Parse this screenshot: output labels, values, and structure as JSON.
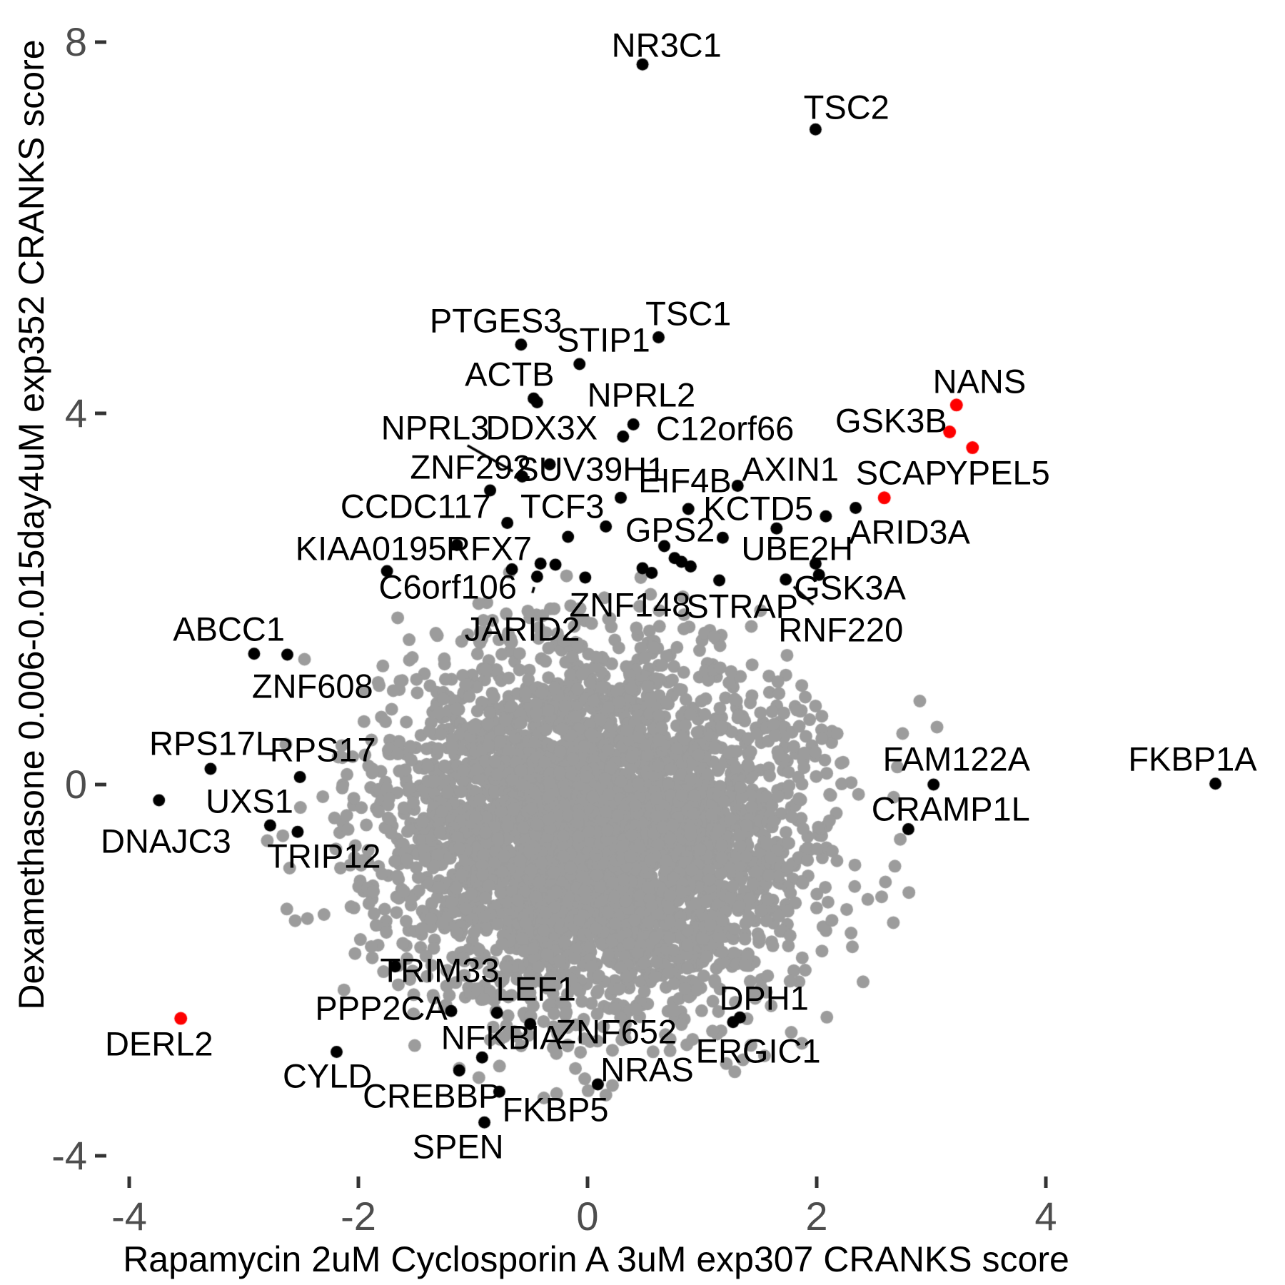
{
  "chart_data": {
    "type": "scatter",
    "title": "",
    "xlabel": "Rapamycin 2uM Cyclosporin A 3uM exp307 CRANKS score",
    "ylabel": "Dexamethasone 0.006-0.015day4uM exp352 CRANKS score",
    "xlim": [
      -4.3,
      5.9
    ],
    "ylim": [
      -4.4,
      8.3
    ],
    "x_ticks": [
      -4,
      -2,
      0,
      2,
      4
    ],
    "y_ticks": [
      8,
      4,
      0,
      -4
    ],
    "grid": false,
    "legend": "none",
    "colors": {
      "labeled_point": "#000000",
      "highlight_point": "#fe0000",
      "cloud_point": "#9c9c9c",
      "tick_label": "#4d4d4d",
      "axis_title": "#000000",
      "gene_label": "#000000"
    },
    "labeled_points": [
      {
        "g": "NR3C1",
        "x": 0.48,
        "y": 7.76,
        "lx": 0.69,
        "ly": 7.97,
        "c": "k"
      },
      {
        "g": "TSC2",
        "x": 1.99,
        "y": 7.06,
        "lx": 2.26,
        "ly": 7.3,
        "c": "k"
      },
      {
        "g": "TSC1",
        "x": 0.62,
        "y": 4.82,
        "lx": 0.88,
        "ly": 5.08,
        "c": "k"
      },
      {
        "g": "PTGES3",
        "x": -0.58,
        "y": 4.74,
        "lx": -0.8,
        "ly": 5.0,
        "c": "k"
      },
      {
        "g": "STIP1",
        "x": -0.07,
        "y": 4.53,
        "lx": 0.14,
        "ly": 4.79,
        "c": "k"
      },
      {
        "g": "ACTB",
        "x": -0.47,
        "y": 4.16,
        "lx": -0.68,
        "ly": 4.42,
        "c": "k"
      },
      {
        "g": "DDX3X",
        "x": -0.44,
        "y": 4.12,
        "lx": -0.4,
        "ly": 3.85,
        "c": "k"
      },
      {
        "g": "NPRL2",
        "x": 0.4,
        "y": 3.88,
        "lx": 0.47,
        "ly": 4.2,
        "c": "k"
      },
      {
        "g": "C12orf66",
        "x": 0.31,
        "y": 3.75,
        "lx": 1.2,
        "ly": 3.84,
        "c": "k"
      },
      {
        "g": "NPRL3",
        "x": -0.57,
        "y": 3.32,
        "lx": -1.33,
        "ly": 3.85,
        "c": "k",
        "seg": true
      },
      {
        "g": "ZNF292",
        "x": -0.85,
        "y": 3.17,
        "lx": -1.02,
        "ly": 3.42,
        "c": "k"
      },
      {
        "g": "SUV39H1",
        "x": -0.33,
        "y": 3.45,
        "lx": 0.03,
        "ly": 3.4,
        "c": "k"
      },
      {
        "g": "EIF4B",
        "x": 1.31,
        "y": 3.22,
        "lx": 0.85,
        "ly": 3.28,
        "c": "k"
      },
      {
        "g": "AXIN1",
        "x": 2.08,
        "y": 2.89,
        "lx": 1.77,
        "ly": 3.4,
        "c": "k"
      },
      {
        "g": "SCAP",
        "x": 2.59,
        "y": 3.09,
        "lx": 2.74,
        "ly": 3.36,
        "c": "r"
      },
      {
        "g": "NANS",
        "x": 3.22,
        "y": 4.09,
        "lx": 3.42,
        "ly": 4.35,
        "c": "r"
      },
      {
        "g": "GSK3B",
        "x": 3.16,
        "y": 3.8,
        "lx": 2.65,
        "ly": 3.92,
        "c": "r"
      },
      {
        "g": "YPEL5",
        "x": 3.36,
        "y": 3.63,
        "lx": 3.58,
        "ly": 3.36,
        "c": "r"
      },
      {
        "g": "CCDC117",
        "x": -0.7,
        "y": 2.82,
        "lx": -1.5,
        "ly": 3.0,
        "c": "k"
      },
      {
        "g": "TCF3",
        "x": -0.17,
        "y": 2.67,
        "lx": -0.22,
        "ly": 3.0,
        "c": "k"
      },
      {
        "g": "KCTD5",
        "x": 1.65,
        "y": 2.76,
        "lx": 1.49,
        "ly": 2.98,
        "c": "k"
      },
      {
        "g": "GPS2",
        "x": 0.88,
        "y": 2.97,
        "lx": 0.72,
        "ly": 2.75,
        "c": "k"
      },
      {
        "g": "UBE2H",
        "x": 1.99,
        "y": 2.38,
        "lx": 1.83,
        "ly": 2.55,
        "c": "k"
      },
      {
        "g": "ARID3A",
        "x": 2.34,
        "y": 2.98,
        "lx": 2.81,
        "ly": 2.72,
        "c": "k"
      },
      {
        "g": "GSK3A",
        "x": 2.02,
        "y": 2.26,
        "lx": 2.29,
        "ly": 2.12,
        "c": "k"
      },
      {
        "g": "RNF220",
        "x": 1.73,
        "y": 2.21,
        "lx": 2.21,
        "ly": 1.67,
        "c": "k",
        "seg": true
      },
      {
        "g": "KIAA0195",
        "x": -1.75,
        "y": 2.3,
        "lx": -1.89,
        "ly": 2.55,
        "c": "k"
      },
      {
        "g": "RFX7",
        "x": -1.14,
        "y": 2.58,
        "lx": -0.86,
        "ly": 2.55,
        "c": "k"
      },
      {
        "g": "C6orf106",
        "x": -0.66,
        "y": 2.32,
        "lx": -1.22,
        "ly": 2.13,
        "c": "k"
      },
      {
        "g": "JARID2",
        "x": -0.44,
        "y": 2.24,
        "lx": -0.57,
        "ly": 1.68,
        "c": "k",
        "seg": true
      },
      {
        "g": "ZNF148",
        "x": 0.56,
        "y": 2.28,
        "lx": 0.37,
        "ly": 1.94,
        "c": "k"
      },
      {
        "g": "STRAP",
        "x": 1.15,
        "y": 2.2,
        "lx": 1.35,
        "ly": 1.92,
        "c": "k"
      },
      {
        "g": "ABCC1",
        "x": -2.91,
        "y": 1.41,
        "lx": -3.13,
        "ly": 1.68,
        "c": "k"
      },
      {
        "g": "ZNF608",
        "x": -2.62,
        "y": 1.4,
        "lx": -2.4,
        "ly": 1.06,
        "c": "k"
      },
      {
        "g": "RPS17L",
        "x": -3.29,
        "y": 0.17,
        "lx": -3.28,
        "ly": 0.45,
        "c": "k"
      },
      {
        "g": "RPS17",
        "x": -2.51,
        "y": 0.08,
        "lx": -2.31,
        "ly": 0.38,
        "c": "k"
      },
      {
        "g": "UXS1",
        "x": -2.77,
        "y": -0.44,
        "lx": -2.95,
        "ly": -0.18,
        "c": "k"
      },
      {
        "g": "DNAJC3",
        "x": -3.74,
        "y": -0.17,
        "lx": -3.68,
        "ly": -0.61,
        "c": "k"
      },
      {
        "g": "TRIP12",
        "x": -2.53,
        "y": -0.51,
        "lx": -2.3,
        "ly": -0.77,
        "c": "k"
      },
      {
        "g": "FAM122A",
        "x": 3.02,
        "y": 0.0,
        "lx": 3.22,
        "ly": 0.28,
        "c": "k"
      },
      {
        "g": "CRAMP1L",
        "x": 2.8,
        "y": -0.48,
        "lx": 3.17,
        "ly": -0.26,
        "c": "k"
      },
      {
        "g": "FKBP1A",
        "x": 5.48,
        "y": 0.01,
        "lx": 5.28,
        "ly": 0.28,
        "c": "k"
      },
      {
        "g": "TRIM33",
        "x": -1.68,
        "y": -1.96,
        "lx": -1.29,
        "ly": -2.0,
        "c": "k"
      },
      {
        "g": "PPP2CA",
        "x": -1.19,
        "y": -2.44,
        "lx": -1.8,
        "ly": -2.41,
        "c": "k"
      },
      {
        "g": "LEF1",
        "x": -0.79,
        "y": -2.46,
        "lx": -0.45,
        "ly": -2.2,
        "c": "k"
      },
      {
        "g": "ZNF652",
        "x": -0.5,
        "y": -2.58,
        "lx": 0.25,
        "ly": -2.66,
        "c": "k"
      },
      {
        "g": "NFKBIA",
        "x": -0.92,
        "y": -2.94,
        "lx": -0.75,
        "ly": -2.72,
        "c": "k"
      },
      {
        "g": "CREBBP",
        "x": -1.12,
        "y": -3.08,
        "lx": -1.36,
        "ly": -3.35,
        "c": "k"
      },
      {
        "g": "FKBP5",
        "x": -0.77,
        "y": -3.31,
        "lx": -0.28,
        "ly": -3.5,
        "c": "k"
      },
      {
        "g": "NRAS",
        "x": 0.09,
        "y": -3.23,
        "lx": 0.52,
        "ly": -3.07,
        "c": "k"
      },
      {
        "g": "SPEN",
        "x": -0.9,
        "y": -3.64,
        "lx": -1.13,
        "ly": -3.9,
        "c": "k"
      },
      {
        "g": "CYLD",
        "x": -2.19,
        "y": -2.88,
        "lx": -2.27,
        "ly": -3.14,
        "c": "k"
      },
      {
        "g": "DPH1",
        "x": 1.33,
        "y": -2.51,
        "lx": 1.54,
        "ly": -2.3,
        "c": "k"
      },
      {
        "g": "ERGIC1",
        "x": 1.27,
        "y": -2.56,
        "lx": 1.49,
        "ly": -2.87,
        "c": "k"
      },
      {
        "g": "DERL2",
        "x": -3.55,
        "y": -2.52,
        "lx": -3.74,
        "ly": -2.79,
        "c": "r"
      }
    ],
    "extra_black_points": [
      [
        0.67,
        2.57
      ],
      [
        0.76,
        2.44
      ],
      [
        0.82,
        2.4
      ],
      [
        0.9,
        2.35
      ],
      [
        1.18,
        2.66
      ],
      [
        0.48,
        2.33
      ],
      [
        -0.02,
        2.23
      ],
      [
        -0.41,
        2.38
      ],
      [
        -0.28,
        2.37
      ],
      [
        0.29,
        3.09
      ],
      [
        0.16,
        2.78
      ]
    ],
    "cloud": {
      "count_core": 3700,
      "count_fringe": 620,
      "center": [
        0.05,
        -0.52
      ],
      "sd_core": [
        0.88,
        0.92
      ],
      "sd_fringe": [
        1.28,
        1.3
      ],
      "seed": 123456,
      "outliers": [
        [
          -2.47,
          1.35
        ],
        [
          -2.05,
          0.3
        ],
        [
          -2.3,
          -1.4
        ],
        [
          1.45,
          -2.25
        ],
        [
          0.85,
          -2.2
        ],
        [
          2.6,
          -1.05
        ],
        [
          2.75,
          0.55
        ],
        [
          2.9,
          0.9
        ],
        [
          -1.55,
          -2.1
        ],
        [
          2.3,
          -1.6
        ],
        [
          1.9,
          -2.0
        ],
        [
          -2.6,
          -0.9
        ],
        [
          3.05,
          0.62
        ],
        [
          0.3,
          -2.75
        ],
        [
          -0.2,
          -2.6
        ],
        [
          -0.95,
          1.95
        ],
        [
          0.55,
          2.05
        ],
        [
          1.42,
          -2.12
        ]
      ]
    }
  }
}
